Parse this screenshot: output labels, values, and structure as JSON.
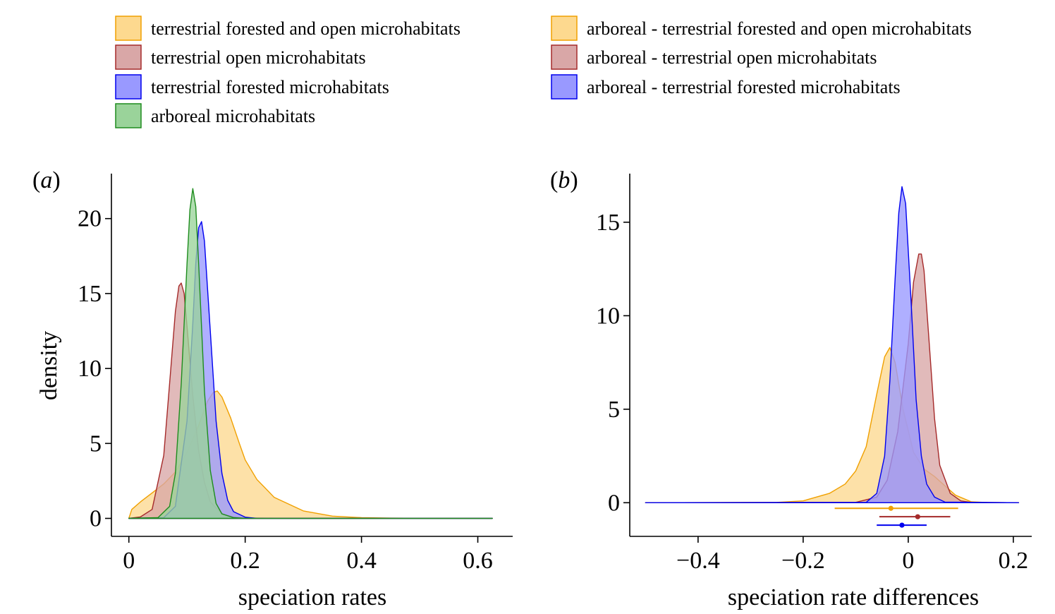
{
  "legends": [
    {
      "items": [
        {
          "label": "terrestrial forested and open microhabitats",
          "fill": "#fdd98f",
          "stroke": "#f0a000"
        },
        {
          "label": "terrestrial open microhabitats",
          "fill": "#d9a7a7",
          "stroke": "#a52a2a"
        },
        {
          "label": "terrestrial forested microhabitats",
          "fill": "#9999ff",
          "stroke": "#0000ee"
        },
        {
          "label": "arboreal microhabitats",
          "fill": "#9ad39a",
          "stroke": "#1e8c1e"
        }
      ]
    },
    {
      "items": [
        {
          "label": "arboreal - terrestrial forested and open microhabitats",
          "fill": "#fdd98f",
          "stroke": "#f0a000"
        },
        {
          "label": "arboreal - terrestrial open microhabitats",
          "fill": "#d9a7a7",
          "stroke": "#a52a2a"
        },
        {
          "label": "arboreal - terrestrial forested microhabitats",
          "fill": "#9999ff",
          "stroke": "#0000ee"
        }
      ]
    }
  ],
  "chart_data": [
    {
      "panel_label": "a",
      "type": "area",
      "xlabel": "speciation rates",
      "ylabel": "density",
      "xlim": [
        -0.03,
        0.66
      ],
      "ylim": [
        -1.2,
        23
      ],
      "xticks": [
        0,
        0.2,
        0.4,
        0.6
      ],
      "xtick_labels": [
        "0",
        "0.2",
        "0.4",
        "0.6"
      ],
      "yticks": [
        0,
        5,
        10,
        15,
        20
      ],
      "ytick_labels": [
        "0",
        "5",
        "10",
        "15",
        "20"
      ],
      "grid": false,
      "series": [
        {
          "color": "#f0a000",
          "fill": "#fdd98f",
          "x": [
            0,
            0.005,
            0.02,
            0.04,
            0.06,
            0.08,
            0.1,
            0.12,
            0.135,
            0.145,
            0.152,
            0.16,
            0.175,
            0.19,
            0.2,
            0.22,
            0.25,
            0.3,
            0.35,
            0.4,
            0.45,
            0.5,
            0.625
          ],
          "y": [
            0,
            0.6,
            1.1,
            1.7,
            2.3,
            3.1,
            4.4,
            6.2,
            7.8,
            8.4,
            8.5,
            8.1,
            6.7,
            5.0,
            3.9,
            2.6,
            1.4,
            0.5,
            0.15,
            0.05,
            0.02,
            0.01,
            0
          ]
        },
        {
          "color": "#a52a2a",
          "fill": "#d9a7a7",
          "x": [
            0,
            0.02,
            0.04,
            0.06,
            0.07,
            0.08,
            0.086,
            0.09,
            0.095,
            0.1,
            0.11,
            0.12,
            0.13,
            0.14,
            0.16,
            0.18,
            0.2,
            0.25,
            0.625
          ],
          "y": [
            0,
            0.1,
            0.6,
            4.2,
            9.0,
            13.8,
            15.5,
            15.7,
            15.0,
            12.8,
            8.2,
            4.5,
            2.4,
            1.1,
            0.3,
            0.08,
            0.03,
            0,
            0
          ]
        },
        {
          "color": "#0000ee",
          "fill": "#9999ff",
          "x": [
            0,
            0.06,
            0.08,
            0.1,
            0.11,
            0.115,
            0.12,
            0.125,
            0.13,
            0.14,
            0.15,
            0.16,
            0.17,
            0.18,
            0.2,
            0.22,
            0.625
          ],
          "y": [
            0,
            0.05,
            0.8,
            6.5,
            13.0,
            17.0,
            19.4,
            19.8,
            18.5,
            12.5,
            6.5,
            3.0,
            1.2,
            0.45,
            0.08,
            0,
            0
          ]
        },
        {
          "color": "#1e8c1e",
          "fill": "#9ad39a",
          "x": [
            0,
            0.05,
            0.07,
            0.08,
            0.09,
            0.1,
            0.105,
            0.11,
            0.115,
            0.12,
            0.13,
            0.14,
            0.15,
            0.16,
            0.18,
            0.2,
            0.625
          ],
          "y": [
            0,
            0.05,
            0.8,
            3.0,
            9.0,
            17.0,
            20.6,
            22.0,
            20.8,
            17.0,
            8.5,
            3.2,
            1.0,
            0.3,
            0.05,
            0,
            0
          ]
        }
      ]
    },
    {
      "panel_label": "b",
      "type": "area",
      "xlabel": "speciation rate differences",
      "ylabel": "",
      "xlim": [
        -0.53,
        0.235
      ],
      "ylim": [
        -1.8,
        17.6
      ],
      "xticks": [
        -0.4,
        -0.2,
        0,
        0.2
      ],
      "xtick_labels": [
        "−0.4",
        "−0.2",
        "0",
        "0.2"
      ],
      "yticks": [
        0,
        5,
        10,
        15
      ],
      "ytick_labels": [
        "0",
        "5",
        "10",
        "15"
      ],
      "grid": false,
      "series": [
        {
          "color": "#f0a000",
          "fill": "#fdd98f",
          "x": [
            -0.5,
            -0.25,
            -0.2,
            -0.15,
            -0.12,
            -0.1,
            -0.08,
            -0.06,
            -0.045,
            -0.035,
            -0.025,
            -0.01,
            0.01,
            0.03,
            0.05,
            0.07,
            0.09,
            0.12,
            0.15,
            0.21
          ],
          "y": [
            0,
            0.02,
            0.1,
            0.5,
            1.0,
            1.7,
            3.0,
            5.8,
            7.8,
            8.3,
            7.5,
            5.0,
            2.7,
            1.8,
            1.4,
            0.9,
            0.4,
            0.05,
            0.01,
            0
          ]
        },
        {
          "color": "#a52a2a",
          "fill": "#d9a7a7",
          "x": [
            -0.5,
            -0.1,
            -0.06,
            -0.04,
            -0.02,
            0,
            0.01,
            0.02,
            0.025,
            0.03,
            0.04,
            0.05,
            0.06,
            0.08,
            0.1,
            0.12,
            0.21
          ],
          "y": [
            0,
            0.02,
            0.3,
            1.2,
            3.8,
            8.5,
            11.8,
            13.3,
            13.3,
            12.4,
            8.5,
            4.5,
            2.0,
            0.5,
            0.1,
            0.02,
            0
          ]
        },
        {
          "color": "#0000ee",
          "fill": "#9999ff",
          "x": [
            -0.5,
            -0.08,
            -0.06,
            -0.045,
            -0.035,
            -0.025,
            -0.018,
            -0.012,
            -0.005,
            0.005,
            0.015,
            0.025,
            0.035,
            0.05,
            0.07,
            0.21
          ],
          "y": [
            0,
            0.02,
            0.5,
            2.5,
            6.5,
            12.0,
            15.5,
            16.9,
            16.0,
            11.0,
            5.5,
            2.5,
            1.0,
            0.3,
            0.03,
            0
          ]
        }
      ],
      "intervals": [
        {
          "color": "#f0a000",
          "y": -0.3,
          "low": -0.14,
          "high": 0.095,
          "point": -0.033
        },
        {
          "color": "#a52a2a",
          "y": -0.75,
          "low": -0.055,
          "high": 0.08,
          "point": 0.018
        },
        {
          "color": "#0000ee",
          "y": -1.2,
          "low": -0.06,
          "high": 0.035,
          "point": -0.012
        }
      ]
    }
  ]
}
